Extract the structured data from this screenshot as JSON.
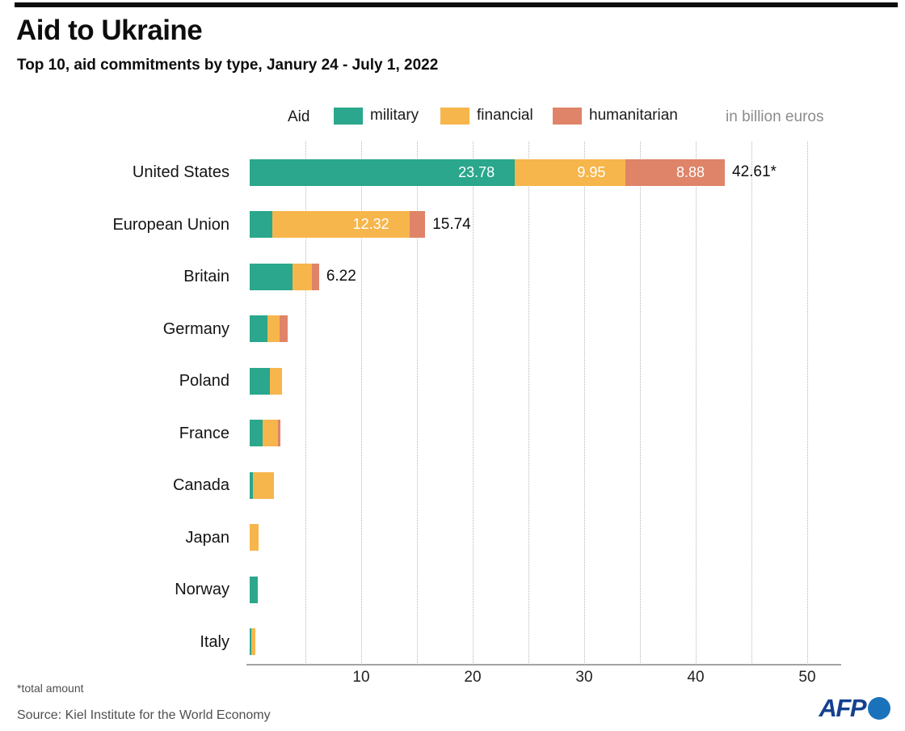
{
  "header": {
    "title": "Aid to Ukraine",
    "subtitle": "Top 10, aid commitments by type, Janury 24 - July 1, 2022"
  },
  "legend": {
    "label": "Aid",
    "items": [
      {
        "name": "military",
        "color": "#2aa78c"
      },
      {
        "name": "financial",
        "color": "#f6b64c"
      },
      {
        "name": "humanitarian",
        "color": "#df8468"
      }
    ],
    "unit_note": "in billion euros"
  },
  "chart_data": {
    "type": "bar",
    "orientation": "horizontal",
    "stacked": true,
    "unit": "billion euros",
    "categories": [
      "United States",
      "European Union",
      "Britain",
      "Germany",
      "Poland",
      "France",
      "Canada",
      "Japan",
      "Norway",
      "Italy"
    ],
    "series": [
      {
        "name": "military",
        "color": "#2aa78c",
        "values": [
          23.78,
          2.0,
          3.85,
          1.6,
          1.8,
          1.15,
          0.3,
          0,
          0.7,
          0.15
        ]
      },
      {
        "name": "financial",
        "color": "#f6b64c",
        "values": [
          9.95,
          12.32,
          1.75,
          1.1,
          1.1,
          1.4,
          1.9,
          0.8,
          0,
          0.35
        ]
      },
      {
        "name": "humanitarian",
        "color": "#df8468",
        "values": [
          8.88,
          1.42,
          0.62,
          0.7,
          0,
          0.2,
          0,
          0,
          0,
          0
        ]
      }
    ],
    "segment_labels": [
      [
        "23.78",
        "9.95",
        "8.88"
      ],
      [
        "",
        "12.32",
        ""
      ],
      [
        "",
        "",
        ""
      ],
      [
        "",
        "",
        ""
      ],
      [
        "",
        "",
        ""
      ],
      [
        "",
        "",
        ""
      ],
      [
        "",
        "",
        ""
      ],
      [
        "",
        "",
        ""
      ],
      [
        "",
        "",
        ""
      ],
      [
        "",
        "",
        ""
      ]
    ],
    "total_labels": [
      "42.61*",
      "15.74",
      "6.22",
      "",
      "",
      "",
      "",
      "",
      "",
      ""
    ],
    "xlim": [
      0,
      50
    ],
    "xticks": [
      10,
      20,
      30,
      40,
      50
    ],
    "minor_grid_step": 5,
    "grid": "dotted-vertical",
    "legend_position": "top",
    "title": "Aid to Ukraine",
    "xlabel": "",
    "ylabel": ""
  },
  "footer": {
    "note": "*total amount",
    "source": "Source: Kiel Institute for the World Economy",
    "logo_text": "AFP"
  }
}
